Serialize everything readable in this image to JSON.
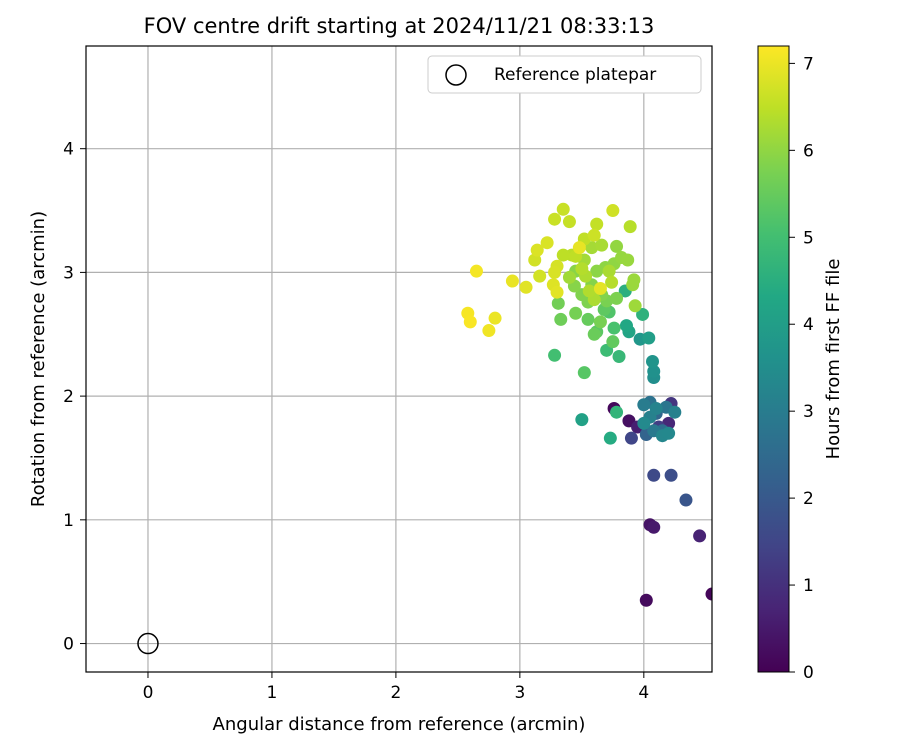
{
  "chart_data": {
    "type": "scatter",
    "title": "FOV centre drift starting at 2024/11/21 08:33:13",
    "xlabel": "Angular distance from reference (arcmin)",
    "ylabel": "Rotation from reference (arcmin)",
    "xlim": [
      -0.5,
      4.55
    ],
    "ylim": [
      -0.23,
      4.83
    ],
    "xticks": [
      "0",
      "1",
      "2",
      "3",
      "4"
    ],
    "yticks": [
      "0",
      "1",
      "2",
      "3",
      "4"
    ],
    "grid": true,
    "legend": {
      "placement": "top-right",
      "entries": [
        "Reference platepar"
      ]
    },
    "reference_point": {
      "x": 0,
      "y": 0
    },
    "colorbar": {
      "label": "Hours from first FF file",
      "range": [
        0,
        7.2
      ],
      "ticks": [
        "0",
        "1",
        "2",
        "3",
        "4",
        "5",
        "6",
        "7"
      ],
      "colormap": "viridis"
    },
    "points": [
      [
        4.55,
        0.4,
        0.1
      ],
      [
        4.02,
        0.35,
        0.2
      ],
      [
        4.05,
        0.96,
        0.4
      ],
      [
        4.08,
        0.94,
        0.5
      ],
      [
        4.45,
        0.87,
        0.7
      ],
      [
        3.76,
        1.9,
        0.15
      ],
      [
        3.88,
        1.8,
        0.3
      ],
      [
        3.95,
        1.75,
        0.6
      ],
      [
        4.2,
        1.78,
        0.8
      ],
      [
        4.22,
        1.94,
        1.1
      ],
      [
        4.12,
        1.75,
        1.3
      ],
      [
        3.9,
        1.66,
        1.5
      ],
      [
        4.08,
        1.36,
        1.6
      ],
      [
        4.22,
        1.36,
        1.7
      ],
      [
        4.34,
        1.16,
        1.9
      ],
      [
        4.02,
        1.69,
        2.3
      ],
      [
        4.1,
        1.86,
        2.4
      ],
      [
        4.15,
        1.72,
        2.6
      ],
      [
        4.05,
        1.95,
        2.7
      ],
      [
        4.18,
        1.91,
        2.8
      ],
      [
        4.08,
        1.72,
        2.9
      ],
      [
        4.0,
        1.93,
        3.0
      ],
      [
        4.25,
        1.87,
        3.1
      ],
      [
        4.05,
        1.83,
        3.15
      ],
      [
        4.1,
        1.9,
        3.2
      ],
      [
        4.15,
        1.68,
        3.3
      ],
      [
        4.2,
        1.7,
        3.35
      ],
      [
        4.0,
        1.78,
        3.4
      ],
      [
        4.08,
        2.15,
        3.5
      ],
      [
        4.08,
        2.2,
        3.6
      ],
      [
        4.07,
        2.28,
        3.7
      ],
      [
        3.97,
        2.46,
        3.8
      ],
      [
        4.04,
        2.47,
        4.0
      ],
      [
        3.5,
        1.81,
        4.1
      ],
      [
        3.88,
        2.52,
        4.2
      ],
      [
        3.86,
        2.57,
        4.3
      ],
      [
        3.73,
        1.66,
        4.4
      ],
      [
        3.85,
        2.85,
        4.5
      ],
      [
        3.99,
        2.66,
        4.6
      ],
      [
        3.78,
        1.87,
        4.7
      ],
      [
        3.8,
        2.32,
        4.8
      ],
      [
        3.7,
        2.37,
        4.9
      ],
      [
        3.28,
        2.33,
        5.0
      ],
      [
        3.76,
        2.55,
        5.1
      ],
      [
        3.72,
        2.68,
        5.2
      ],
      [
        3.52,
        2.19,
        5.3
      ],
      [
        3.62,
        2.52,
        5.35
      ],
      [
        3.68,
        2.7,
        5.4
      ],
      [
        3.75,
        2.44,
        5.45
      ],
      [
        3.55,
        2.62,
        5.5
      ],
      [
        3.6,
        2.5,
        5.55
      ],
      [
        3.33,
        2.62,
        5.6
      ],
      [
        3.31,
        2.75,
        5.65
      ],
      [
        3.45,
        2.67,
        5.7
      ],
      [
        3.65,
        2.6,
        5.72
      ],
      [
        3.7,
        2.77,
        5.75
      ],
      [
        3.78,
        2.79,
        5.78
      ],
      [
        3.55,
        2.76,
        5.8
      ],
      [
        3.5,
        2.82,
        5.82
      ],
      [
        3.66,
        2.82,
        5.85
      ],
      [
        3.58,
        2.9,
        5.88
      ],
      [
        3.44,
        2.89,
        5.9
      ],
      [
        3.45,
        3.01,
        5.92
      ],
      [
        3.62,
        3.01,
        5.95
      ],
      [
        3.69,
        3.04,
        5.98
      ],
      [
        3.76,
        3.07,
        6.0
      ],
      [
        3.78,
        3.21,
        6.02
      ],
      [
        3.82,
        3.12,
        6.05
      ],
      [
        3.87,
        3.1,
        6.08
      ],
      [
        3.91,
        2.9,
        6.1
      ],
      [
        3.92,
        2.94,
        6.12
      ],
      [
        3.93,
        2.73,
        6.15
      ],
      [
        3.4,
        2.96,
        6.18
      ],
      [
        3.52,
        3.1,
        6.2
      ],
      [
        3.58,
        3.2,
        6.22
      ],
      [
        3.66,
        3.22,
        6.25
      ],
      [
        3.72,
        3.01,
        6.28
      ],
      [
        3.6,
        2.78,
        6.3
      ],
      [
        3.53,
        2.97,
        6.32
      ],
      [
        3.56,
        2.85,
        6.35
      ],
      [
        3.5,
        3.03,
        6.38
      ],
      [
        3.74,
        2.92,
        6.4
      ],
      [
        3.89,
        3.37,
        6.42
      ],
      [
        3.42,
        3.14,
        6.45
      ],
      [
        3.35,
        3.14,
        6.48
      ],
      [
        3.45,
        3.13,
        6.5
      ],
      [
        3.52,
        3.27,
        6.52
      ],
      [
        3.62,
        3.39,
        6.55
      ],
      [
        3.4,
        3.41,
        6.58
      ],
      [
        3.35,
        3.51,
        6.6
      ],
      [
        3.28,
        3.43,
        6.62
      ],
      [
        3.6,
        3.3,
        6.65
      ],
      [
        3.75,
        3.5,
        6.68
      ],
      [
        3.12,
        3.1,
        6.7
      ],
      [
        3.16,
        2.97,
        6.72
      ],
      [
        3.3,
        3.05,
        6.75
      ],
      [
        3.28,
        3.0,
        6.78
      ],
      [
        3.22,
        3.24,
        6.8
      ],
      [
        3.14,
        3.18,
        6.82
      ],
      [
        3.27,
        2.9,
        6.85
      ],
      [
        3.05,
        2.88,
        6.88
      ],
      [
        3.3,
        2.84,
        6.9
      ],
      [
        3.65,
        2.87,
        6.92
      ],
      [
        3.48,
        3.2,
        6.95
      ],
      [
        2.94,
        2.93,
        6.97
      ],
      [
        2.8,
        2.63,
        7.0
      ],
      [
        2.75,
        2.53,
        7.05
      ],
      [
        2.65,
        3.01,
        7.1
      ],
      [
        2.58,
        2.67,
        7.12
      ],
      [
        2.6,
        2.6,
        7.15
      ]
    ]
  }
}
